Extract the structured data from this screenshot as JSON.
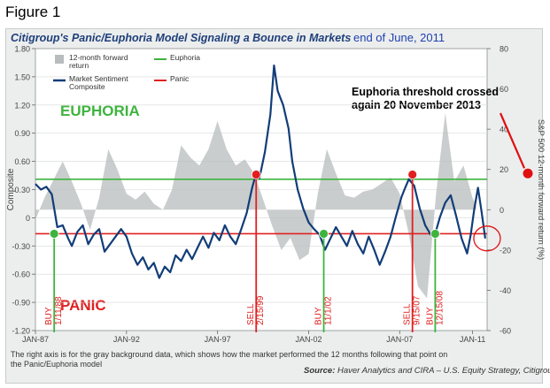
{
  "figure_label": "Figure 1",
  "chart_data": {
    "type": "line",
    "title": "Citigroup's Panic/Euphoria Model Signaling a Bounce in Markets",
    "subtitle": "end of June, 2011",
    "ylabel_left": "Composite",
    "ylabel_right": "S&P 500 12-month forward return (%)",
    "ylim_left": [
      -1.2,
      1.8
    ],
    "ylim_right": [
      -60,
      80
    ],
    "yticks_left": [
      "1.80",
      "1.50",
      "1.20",
      "0.90",
      "0.60",
      "0.30",
      "0",
      "-0.30",
      "-0.60",
      "-0.90",
      "-1.20"
    ],
    "yticks_right": [
      "80",
      "60",
      "40",
      "20",
      "0",
      "-20",
      "-40",
      "-60"
    ],
    "xlim": [
      1987.0,
      2011.8
    ],
    "xtick_labels": [
      "JAN-87",
      "JAN-92",
      "JAN-97",
      "JAN-02",
      "JAN-07",
      "JAN-11"
    ],
    "xtick_years": [
      1987,
      1992,
      1997,
      2002,
      2007,
      2011
    ],
    "zone_labels": {
      "euphoria": "EUPHORIA",
      "panic": "PANIC"
    },
    "legend": [
      {
        "label": "12-month forward return",
        "kind": "area"
      },
      {
        "label": "Market Sentiment Composite",
        "kind": "line"
      },
      {
        "label": "Euphoria",
        "kind": "euphoria"
      },
      {
        "label": "Panic",
        "kind": "panic"
      }
    ],
    "thresholds": {
      "euphoria": 0.41,
      "panic": -0.17
    },
    "series": [
      {
        "name": "Market Sentiment Composite",
        "axis": "left",
        "points": [
          [
            1987.0,
            0.36
          ],
          [
            1987.3,
            0.3
          ],
          [
            1987.6,
            0.33
          ],
          [
            1987.9,
            0.25
          ],
          [
            1988.2,
            -0.1
          ],
          [
            1988.5,
            -0.08
          ],
          [
            1988.8,
            -0.22
          ],
          [
            1989.0,
            -0.3
          ],
          [
            1989.3,
            -0.15
          ],
          [
            1989.6,
            -0.08
          ],
          [
            1989.9,
            -0.28
          ],
          [
            1990.2,
            -0.18
          ],
          [
            1990.5,
            -0.12
          ],
          [
            1990.8,
            -0.36
          ],
          [
            1991.1,
            -0.28
          ],
          [
            1991.4,
            -0.2
          ],
          [
            1991.7,
            -0.12
          ],
          [
            1992.0,
            -0.2
          ],
          [
            1992.3,
            -0.38
          ],
          [
            1992.6,
            -0.5
          ],
          [
            1992.9,
            -0.42
          ],
          [
            1993.2,
            -0.55
          ],
          [
            1993.5,
            -0.48
          ],
          [
            1993.8,
            -0.64
          ],
          [
            1994.1,
            -0.52
          ],
          [
            1994.4,
            -0.58
          ],
          [
            1994.7,
            -0.4
          ],
          [
            1995.0,
            -0.46
          ],
          [
            1995.3,
            -0.34
          ],
          [
            1995.6,
            -0.44
          ],
          [
            1995.9,
            -0.32
          ],
          [
            1996.2,
            -0.2
          ],
          [
            1996.5,
            -0.32
          ],
          [
            1996.8,
            -0.16
          ],
          [
            1997.1,
            -0.24
          ],
          [
            1997.4,
            -0.08
          ],
          [
            1997.7,
            -0.2
          ],
          [
            1998.0,
            -0.28
          ],
          [
            1998.3,
            -0.12
          ],
          [
            1998.6,
            0.05
          ],
          [
            1998.9,
            0.32
          ],
          [
            1999.1,
            0.46
          ],
          [
            1999.3,
            0.42
          ],
          [
            1999.6,
            0.7
          ],
          [
            1999.9,
            1.1
          ],
          [
            2000.1,
            1.62
          ],
          [
            2000.3,
            1.35
          ],
          [
            2000.6,
            1.2
          ],
          [
            2000.9,
            0.95
          ],
          [
            2001.1,
            0.6
          ],
          [
            2001.4,
            0.3
          ],
          [
            2001.7,
            0.1
          ],
          [
            2002.0,
            -0.05
          ],
          [
            2002.3,
            -0.12
          ],
          [
            2002.6,
            -0.18
          ],
          [
            2002.9,
            -0.34
          ],
          [
            2003.2,
            -0.22
          ],
          [
            2003.5,
            -0.1
          ],
          [
            2003.8,
            -0.2
          ],
          [
            2004.1,
            -0.3
          ],
          [
            2004.4,
            -0.14
          ],
          [
            2004.7,
            -0.28
          ],
          [
            2005.0,
            -0.38
          ],
          [
            2005.3,
            -0.2
          ],
          [
            2005.6,
            -0.34
          ],
          [
            2005.9,
            -0.5
          ],
          [
            2006.2,
            -0.36
          ],
          [
            2006.5,
            -0.2
          ],
          [
            2006.8,
            0.02
          ],
          [
            2007.1,
            0.22
          ],
          [
            2007.3,
            0.32
          ],
          [
            2007.5,
            0.41
          ],
          [
            2007.8,
            0.34
          ],
          [
            2008.1,
            0.1
          ],
          [
            2008.4,
            -0.08
          ],
          [
            2008.7,
            -0.18
          ],
          [
            2008.95,
            -0.17
          ],
          [
            2009.2,
            0.0
          ],
          [
            2009.5,
            0.16
          ],
          [
            2009.8,
            0.24
          ],
          [
            2010.1,
            0.02
          ],
          [
            2010.4,
            -0.22
          ],
          [
            2010.7,
            -0.38
          ],
          [
            2010.9,
            -0.18
          ],
          [
            2011.1,
            0.1
          ],
          [
            2011.3,
            0.32
          ],
          [
            2011.5,
            0.06
          ],
          [
            2011.7,
            -0.22
          ]
        ]
      },
      {
        "name": "12-month forward return",
        "axis": "right",
        "points": [
          [
            1987.0,
            -5
          ],
          [
            1987.5,
            6
          ],
          [
            1988.0,
            15
          ],
          [
            1988.5,
            24
          ],
          [
            1989.0,
            14
          ],
          [
            1989.5,
            3
          ],
          [
            1990.0,
            -10
          ],
          [
            1990.5,
            6
          ],
          [
            1991.0,
            30
          ],
          [
            1991.5,
            20
          ],
          [
            1992.0,
            8
          ],
          [
            1992.5,
            5
          ],
          [
            1993.0,
            9
          ],
          [
            1993.5,
            3
          ],
          [
            1994.0,
            0
          ],
          [
            1994.5,
            10
          ],
          [
            1995.0,
            32
          ],
          [
            1995.5,
            26
          ],
          [
            1996.0,
            22
          ],
          [
            1996.5,
            30
          ],
          [
            1997.0,
            44
          ],
          [
            1997.5,
            30
          ],
          [
            1998.0,
            22
          ],
          [
            1998.5,
            25
          ],
          [
            1999.0,
            18
          ],
          [
            1999.5,
            5
          ],
          [
            2000.0,
            -8
          ],
          [
            2000.5,
            -20
          ],
          [
            2001.0,
            -14
          ],
          [
            2001.5,
            -25
          ],
          [
            2002.0,
            -22
          ],
          [
            2002.5,
            8
          ],
          [
            2003.0,
            30
          ],
          [
            2003.5,
            18
          ],
          [
            2004.0,
            7
          ],
          [
            2004.5,
            6
          ],
          [
            2005.0,
            9
          ],
          [
            2005.5,
            10
          ],
          [
            2006.0,
            13
          ],
          [
            2006.5,
            16
          ],
          [
            2007.0,
            8
          ],
          [
            2007.5,
            -12
          ],
          [
            2008.0,
            -38
          ],
          [
            2008.5,
            -44
          ],
          [
            2009.0,
            8
          ],
          [
            2009.5,
            48
          ],
          [
            2010.0,
            14
          ],
          [
            2010.5,
            22
          ],
          [
            2011.0,
            6
          ],
          [
            2011.2,
            2
          ]
        ]
      }
    ],
    "signals": [
      {
        "type": "BUY",
        "date": "1/11/88",
        "x": 1988.03,
        "y": -0.17
      },
      {
        "type": "SELL",
        "date": "2/15/99",
        "x": 1999.12,
        "y": 0.46
      },
      {
        "type": "BUY",
        "date": "11/1/02",
        "x": 2002.83,
        "y": -0.17
      },
      {
        "type": "SELL",
        "date": "9/15/07",
        "x": 2007.7,
        "y": 0.46
      },
      {
        "type": "BUY",
        "date": "12/15/08",
        "x": 2008.95,
        "y": -0.17
      }
    ],
    "annotation": {
      "text_line1": "Euphoria threshold crossed",
      "text_line2": "again 20 November 2013",
      "marker_value_right_axis": 18
    },
    "footnote_line1": "The right axis is for the gray background data, which shows how the market performed the 12 months following that point on",
    "footnote_line2": "the Panic/Euphoria model",
    "source_label": "Source:",
    "source_text": "Haver Analytics and CIRA – U.S. Equity Strategy, Citigroup"
  },
  "colors": {
    "title": "#1f3f7a",
    "subtitle": "#1f3fb0",
    "composite_line": "#123d78",
    "forward_area": "#b8bcbc",
    "euphoria": "#3eb43e",
    "panic": "#e02020",
    "signal_text": "#e02020",
    "zone_euphoria_text": "#3eb43e",
    "zone_panic_text": "#e02020",
    "axis_text": "#444444",
    "annotation": "#e01010",
    "panel_bg": "#eceeee",
    "plot_bg": "#ffffff"
  }
}
